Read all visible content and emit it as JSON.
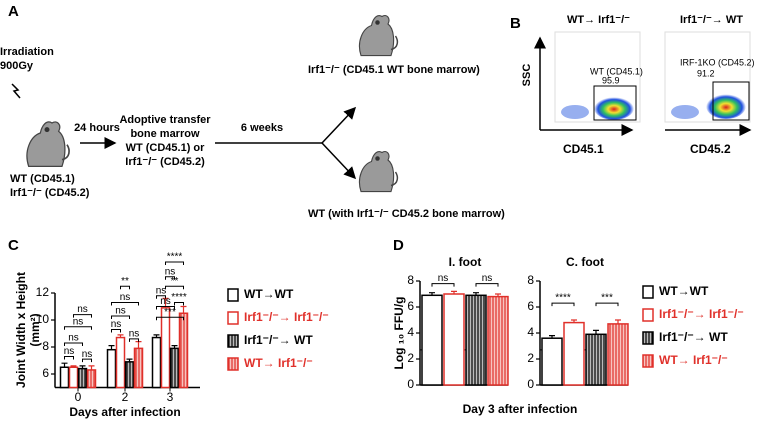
{
  "panel_a": {
    "label": "A",
    "irradiation": "Irradiation",
    "dose": "900Gy",
    "donor_wt": "WT (CD45.1)",
    "donor_ko": "Irf1⁻/⁻ (CD45.2)",
    "time1": "24 hours",
    "transfer": [
      "Adoptive transfer",
      "bone marrow",
      "WT (CD45.1) or",
      "Irf1⁻/⁻ (CD45.2)"
    ],
    "time2": "6 weeks",
    "outcome_top": "Irf1⁻/⁻ (CD45.1 WT bone marrow)",
    "outcome_bottom": "WT (with Irf1⁻/⁻ CD45.2 bone marrow)"
  },
  "panel_b": {
    "label": "B",
    "plot1_title": "WT→ Irf1⁻/⁻",
    "plot2_title": "Irf1⁻/⁻→ WT",
    "yaxis": "SSC",
    "xaxis1": "CD45.1",
    "xaxis2": "CD45.2",
    "gate1_label": "WT (CD45.1)",
    "gate1_value": 95.9,
    "gate2_label": "IRF-1KO (CD45.2)",
    "gate2_value": 91.2
  },
  "chart_data": [
    {
      "type": "bar",
      "panel_label": "C",
      "ylabel": "Joint Width x Height",
      "ylabel_unit": "(mm²)",
      "xlabel": "Days after infection",
      "categories": [
        "0",
        "2",
        "3"
      ],
      "ylim": [
        5,
        12
      ],
      "yticks": [
        6,
        8,
        10,
        12
      ],
      "series": [
        {
          "name": "WT→WT",
          "color": "#000000",
          "hatch": false,
          "values": [
            6.5,
            7.8,
            8.7
          ],
          "errors": [
            0.3,
            0.3,
            0.2
          ]
        },
        {
          "name": "Irf1⁻/⁻→ Irf1⁻/⁻",
          "color": "#e0302a",
          "hatch": false,
          "values": [
            6.5,
            8.7,
            10.9
          ],
          "errors": [
            0.1,
            0.2,
            0.7
          ]
        },
        {
          "name": "Irf1⁻/⁻→ WT",
          "color": "#000000",
          "hatch": true,
          "values": [
            6.4,
            6.9,
            7.9
          ],
          "errors": [
            0.2,
            0.2,
            0.2
          ]
        },
        {
          "name": "WT→ Irf1⁻/⁻",
          "color": "#e0302a",
          "hatch": true,
          "values": [
            6.3,
            7.9,
            10.5
          ],
          "errors": [
            0.3,
            0.5,
            0.5
          ]
        }
      ],
      "annotations": [
        "ns",
        "ns",
        "ns",
        "ns",
        "ns",
        "**",
        "ns",
        "ns",
        "ns",
        "ns",
        "****",
        "ns",
        "**",
        "ns",
        "ns",
        "***",
        "****"
      ]
    },
    {
      "type": "bar",
      "panel_label": "D",
      "ylabel": "Log ₁₀ FFU/g",
      "xlabel": "Day 3 after infection",
      "categories": [
        "I. foot",
        "C. foot"
      ],
      "ylim": [
        0,
        8
      ],
      "yticks": [
        0,
        2,
        4,
        6,
        8
      ],
      "detection_limit": 2.7,
      "series": [
        {
          "name": "WT→WT",
          "color": "#000000",
          "hatch": false,
          "values": [
            6.9,
            3.6
          ],
          "errors": [
            0.2,
            0.2
          ]
        },
        {
          "name": "Irf1⁻/⁻→ Irf1⁻/⁻",
          "color": "#e0302a",
          "hatch": false,
          "values": [
            7.0,
            4.8
          ],
          "errors": [
            0.2,
            0.2
          ]
        },
        {
          "name": "Irf1⁻/⁻→ WT",
          "color": "#000000",
          "hatch": true,
          "values": [
            6.9,
            3.9
          ],
          "errors": [
            0.2,
            0.3
          ]
        },
        {
          "name": "WT→ Irf1⁻/⁻",
          "color": "#e0302a",
          "hatch": true,
          "values": [
            6.8,
            4.7
          ],
          "errors": [
            0.2,
            0.3
          ]
        }
      ],
      "annotations": [
        "ns",
        "ns",
        "****",
        "***"
      ]
    }
  ]
}
